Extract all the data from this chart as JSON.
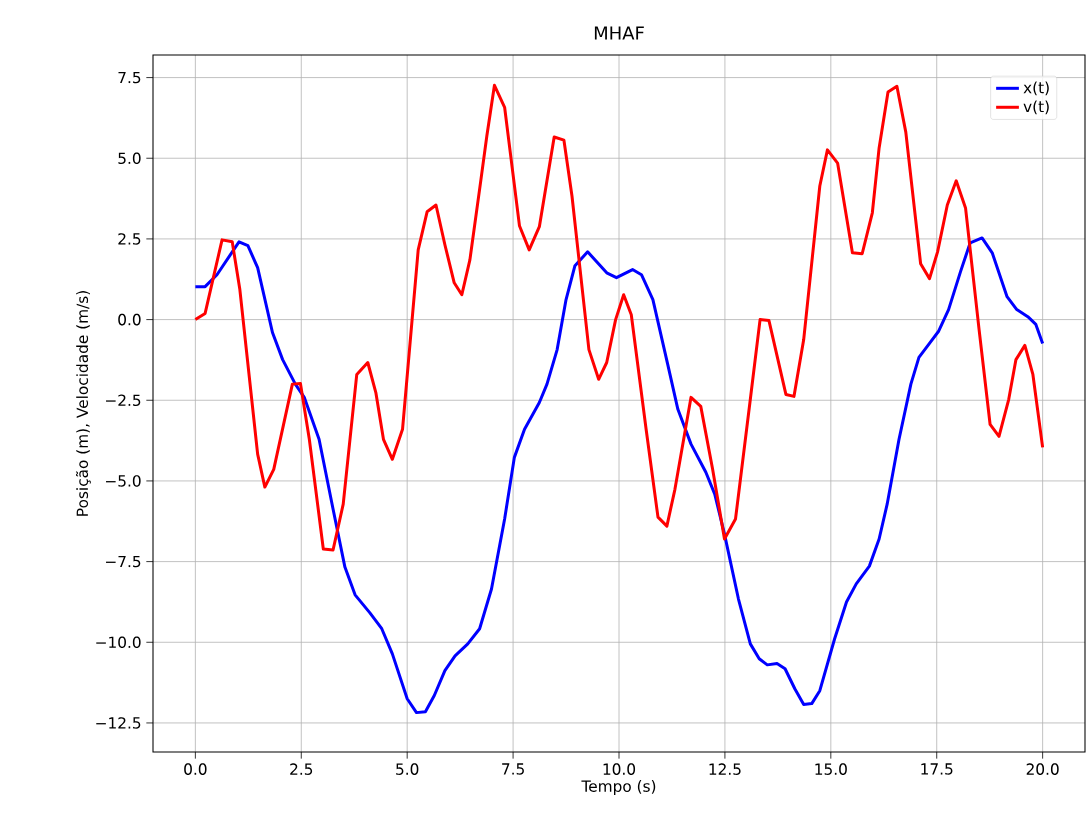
{
  "chart_data": {
    "type": "line",
    "title": "MHAF",
    "xlabel": "Tempo (s)",
    "ylabel": "Posição (m), Velocidade (m/s)",
    "xlim": [
      -1.0,
      21.0
    ],
    "ylim": [
      -13.4,
      8.2
    ],
    "xticks": [
      {
        "value": 0,
        "label": "0.0"
      },
      {
        "value": 2.5,
        "label": "2.5"
      },
      {
        "value": 5,
        "label": "5.0"
      },
      {
        "value": 7.5,
        "label": "7.5"
      },
      {
        "value": 10,
        "label": "10.0"
      },
      {
        "value": 12.5,
        "label": "12.5"
      },
      {
        "value": 15,
        "label": "15.0"
      },
      {
        "value": 17.5,
        "label": "17.5"
      },
      {
        "value": 20,
        "label": "20.0"
      }
    ],
    "yticks": [
      {
        "value": -12.5,
        "label": "−12.5"
      },
      {
        "value": -10,
        "label": "−10.0"
      },
      {
        "value": -7.5,
        "label": "−7.5"
      },
      {
        "value": -5,
        "label": "−5.0"
      },
      {
        "value": -2.5,
        "label": "−2.5"
      },
      {
        "value": 0,
        "label": "0.0"
      },
      {
        "value": 2.5,
        "label": "2.5"
      },
      {
        "value": 5,
        "label": "5.0"
      },
      {
        "value": 7.5,
        "label": "7.5"
      }
    ],
    "grid": true,
    "legend": "top right",
    "line_style": "solid",
    "marker": "none",
    "series": [
      {
        "name": "x(t)",
        "color": "#0000ff",
        "x": [
          0,
          0.23,
          0.51,
          0.82,
          1.03,
          1.24,
          1.47,
          1.82,
          2.06,
          2.36,
          2.57,
          2.92,
          3.25,
          3.53,
          3.77,
          4.12,
          4.4,
          4.65,
          5.0,
          5.22,
          5.43,
          5.64,
          5.89,
          6.13,
          6.43,
          6.71,
          6.99,
          7.3,
          7.53,
          7.77,
          8.12,
          8.3,
          8.54,
          8.75,
          8.96,
          9.26,
          9.71,
          9.94,
          10.32,
          10.53,
          10.8,
          11.15,
          11.39,
          11.7,
          12.05,
          12.26,
          12.49,
          12.82,
          13.1,
          13.31,
          13.5,
          13.73,
          13.92,
          14.15,
          14.36,
          14.55,
          14.74,
          15.09,
          15.37,
          15.6,
          15.91,
          16.14,
          16.33,
          16.61,
          16.89,
          17.08,
          17.36,
          17.54,
          17.78,
          18.06,
          18.29,
          18.57,
          18.81,
          19.16,
          19.39,
          19.65,
          19.84,
          20.0
        ],
        "values": [
          1.02,
          1.02,
          1.39,
          2.0,
          2.41,
          2.29,
          1.61,
          -0.4,
          -1.24,
          -2.0,
          -2.41,
          -3.71,
          -5.87,
          -7.67,
          -8.53,
          -9.09,
          -9.58,
          -10.36,
          -11.75,
          -12.18,
          -12.15,
          -11.65,
          -10.88,
          -10.42,
          -10.05,
          -9.58,
          -8.35,
          -6.18,
          -4.27,
          -3.4,
          -2.57,
          -2.0,
          -0.93,
          0.62,
          1.67,
          2.1,
          1.45,
          1.3,
          1.55,
          1.39,
          0.62,
          -1.39,
          -2.78,
          -3.86,
          -4.73,
          -5.41,
          -6.65,
          -8.66,
          -10.05,
          -10.51,
          -10.7,
          -10.66,
          -10.82,
          -11.44,
          -11.93,
          -11.9,
          -11.5,
          -9.89,
          -8.75,
          -8.19,
          -7.64,
          -6.8,
          -5.72,
          -3.71,
          -2.0,
          -1.17,
          -0.68,
          -0.37,
          0.31,
          1.48,
          2.38,
          2.53,
          2.07,
          0.71,
          0.31,
          0.09,
          -0.15,
          -0.74
        ]
      },
      {
        "name": "v(t)",
        "color": "#ff0000",
        "x": [
          0,
          0.23,
          0.63,
          0.87,
          1.05,
          1.47,
          1.64,
          1.85,
          2.29,
          2.48,
          2.69,
          3.02,
          3.25,
          3.49,
          3.81,
          4.07,
          4.26,
          4.44,
          4.65,
          4.89,
          5.26,
          5.47,
          5.68,
          5.89,
          6.11,
          6.29,
          6.48,
          6.74,
          6.88,
          7.06,
          7.3,
          7.65,
          7.88,
          8.12,
          8.47,
          8.7,
          8.89,
          9.29,
          9.52,
          9.71,
          9.92,
          10.11,
          10.29,
          10.64,
          10.92,
          11.13,
          11.32,
          11.7,
          11.93,
          12.21,
          12.49,
          12.75,
          13.1,
          13.33,
          13.54,
          13.94,
          14.13,
          14.36,
          14.74,
          14.92,
          15.16,
          15.51,
          15.74,
          15.98,
          16.14,
          16.35,
          16.56,
          16.77,
          17.12,
          17.33,
          17.52,
          17.75,
          17.96,
          18.18,
          18.5,
          18.76,
          18.97,
          19.2,
          19.37,
          19.58,
          19.77,
          20.0
        ],
        "values": [
          0,
          0.19,
          2.47,
          2.41,
          0.93,
          -4.17,
          -5.19,
          -4.64,
          -2.0,
          -1.98,
          -3.71,
          -7.11,
          -7.14,
          -5.72,
          -1.7,
          -1.33,
          -2.26,
          -3.71,
          -4.33,
          -3.4,
          2.16,
          3.34,
          3.55,
          2.32,
          1.14,
          0.77,
          1.85,
          4.33,
          5.69,
          7.26,
          6.58,
          2.91,
          2.16,
          2.88,
          5.66,
          5.56,
          3.83,
          -0.93,
          -1.85,
          -1.33,
          0,
          0.77,
          0.15,
          -3.4,
          -6.12,
          -6.4,
          -5.26,
          -2.41,
          -2.69,
          -4.64,
          -6.8,
          -6.18,
          -2.47,
          0,
          -0.03,
          -2.32,
          -2.38,
          -0.62,
          4.14,
          5.26,
          4.85,
          2.07,
          2.04,
          3.31,
          5.32,
          7.05,
          7.23,
          5.81,
          1.73,
          1.27,
          2.1,
          3.55,
          4.3,
          3.46,
          -0.31,
          -3.25,
          -3.62,
          -2.47,
          -1.24,
          -0.8,
          -1.7,
          -3.96
        ]
      }
    ]
  }
}
